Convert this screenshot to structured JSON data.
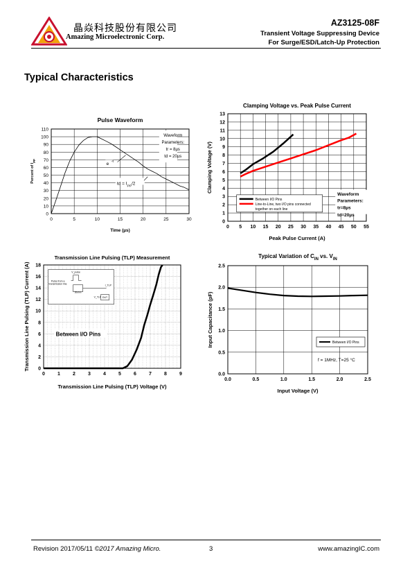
{
  "header": {
    "company_cn": "晶焱科技股份有限公司",
    "company_en": "Amazing Microelectronic Corp.",
    "part_number": "AZ3125-08F",
    "subtitle_1": "Transient Voltage Suppressing Device",
    "subtitle_2": "For Surge/ESD/Latch-Up Protection",
    "logo_icon": "amazing-triangle-logo-icon",
    "logo_color": "#c8102e"
  },
  "section_title": "Typical Characteristics",
  "footer": {
    "revision": "Revision 2017/05/11",
    "copyright": "©2017 Amazing Micro.",
    "page": "3",
    "website": "www.amazingIC.com"
  },
  "chart_data": [
    {
      "type": "line",
      "title": "Pulse Waveform",
      "xlabel": "Time (µs)",
      "ylabel": "Percent of I_PP",
      "xlim": [
        0,
        30
      ],
      "ylim": [
        0,
        110
      ],
      "x_ticks": [
        "0",
        "5",
        "10",
        "15",
        "20",
        "25",
        "30"
      ],
      "y_ticks": [
        "0",
        "10",
        "20",
        "30",
        "40",
        "50",
        "60",
        "70",
        "80",
        "90",
        "100",
        "110"
      ],
      "grid": true,
      "annotations": [
        "Waveform",
        "Parameters:",
        "tr = 8µs",
        "td = 20µs",
        "e^-t",
        "td = I_PP/2"
      ],
      "series": [
        {
          "name": "",
          "x": [
            0,
            1,
            2,
            3,
            4,
            5,
            6,
            7,
            8,
            9,
            10,
            11,
            12,
            13,
            14,
            15,
            16,
            17,
            18,
            19,
            20,
            21,
            22,
            23,
            24,
            25,
            26,
            27,
            28,
            29,
            30
          ],
          "values": [
            0,
            17,
            35,
            53,
            68,
            80,
            89,
            95,
            99,
            100,
            100,
            97,
            94,
            91,
            87,
            83,
            79,
            75,
            71,
            67,
            62,
            58,
            55,
            52,
            48,
            45,
            42,
            39,
            36,
            34,
            31
          ]
        }
      ]
    },
    {
      "type": "line",
      "title": "Clamping Voltage vs. Peak Pulse Current",
      "xlabel": "Peak Pulse Current (A)",
      "ylabel": "Clamping Voltage (V)",
      "xlim": [
        0,
        55
      ],
      "ylim": [
        0,
        13
      ],
      "x_ticks": [
        "0",
        "5",
        "10",
        "15",
        "20",
        "25",
        "30",
        "35",
        "40",
        "45",
        "50",
        "55"
      ],
      "y_ticks": [
        "0",
        "1",
        "2",
        "3",
        "4",
        "5",
        "6",
        "7",
        "8",
        "9",
        "10",
        "11",
        "12",
        "13"
      ],
      "grid": true,
      "legend_position": "bottom-center",
      "annotations": [
        "Waveform",
        "Parameters:",
        "tr=8µs",
        "td=20µs"
      ],
      "series": [
        {
          "name": "Between I/O Pins",
          "color": "#000000",
          "x": [
            5,
            7,
            10,
            14,
            18,
            22,
            26
          ],
          "values": [
            5.8,
            6.2,
            6.9,
            7.6,
            8.4,
            9.4,
            10.5
          ]
        },
        {
          "name": "Line-to-Line, two I/O pins connected together on each line",
          "color": "#ff0000",
          "x": [
            5,
            7,
            10,
            15,
            20,
            25,
            30,
            35,
            40,
            45,
            48,
            51
          ],
          "values": [
            5.4,
            5.7,
            6.1,
            6.6,
            7.1,
            7.6,
            8.1,
            8.6,
            9.2,
            9.8,
            10.1,
            10.6
          ]
        }
      ]
    },
    {
      "type": "line",
      "title": "Transmission Line Pulsing (TLP) Measurement",
      "xlabel": "Transmission Line Pulsing (TLP) Voltage (V)",
      "ylabel": "Transmission Line Pulsing (TLP) Current (A)",
      "xlim": [
        0,
        9
      ],
      "ylim": [
        0,
        18
      ],
      "x_ticks": [
        "0",
        "1",
        "2",
        "3",
        "4",
        "5",
        "6",
        "7",
        "8",
        "9"
      ],
      "y_ticks": [
        "0",
        "2",
        "4",
        "6",
        "8",
        "10",
        "12",
        "14",
        "16",
        "18"
      ],
      "grid": true,
      "annotations": [
        "Between I/O Pins",
        "V_pulse",
        "Pulse from a transmission line",
        "50ohm",
        "I_TLP",
        "V_TLP",
        "DUT"
      ],
      "series": [
        {
          "name": "",
          "x": [
            0,
            5.2,
            5.5,
            5.8,
            6.1,
            6.4,
            6.6,
            6.8,
            7.0,
            7.2,
            7.4,
            7.55,
            7.7,
            7.8
          ],
          "values": [
            0,
            0,
            0.4,
            1.5,
            3.2,
            5.3,
            7.5,
            9.2,
            11.1,
            12.8,
            14.6,
            16.3,
            17.6,
            18
          ]
        }
      ]
    },
    {
      "type": "line",
      "title": "Typical Variation of C_IN vs. V_IN",
      "xlabel": "Input Voltage (V)",
      "ylabel": "Input Capacitance (pF)",
      "xlim": [
        0,
        2.5
      ],
      "ylim": [
        0,
        2.5
      ],
      "x_ticks": [
        "0.0",
        "0.5",
        "1.0",
        "1.5",
        "2.0",
        "2.5"
      ],
      "y_ticks": [
        "0.0",
        "0.5",
        "1.0",
        "1.5",
        "2.0",
        "2.5"
      ],
      "grid": true,
      "legend_position": "bottom-right",
      "annotations": [
        "f = 1MHz, T=25 °C"
      ],
      "series": [
        {
          "name": "Between I/O Pins",
          "color": "#000000",
          "x": [
            0,
            0.25,
            0.5,
            0.75,
            1.0,
            1.25,
            1.5,
            1.75,
            2.0,
            2.25,
            2.5
          ],
          "values": [
            1.98,
            1.93,
            1.88,
            1.84,
            1.81,
            1.795,
            1.79,
            1.795,
            1.8,
            1.81,
            1.815
          ]
        }
      ]
    }
  ]
}
